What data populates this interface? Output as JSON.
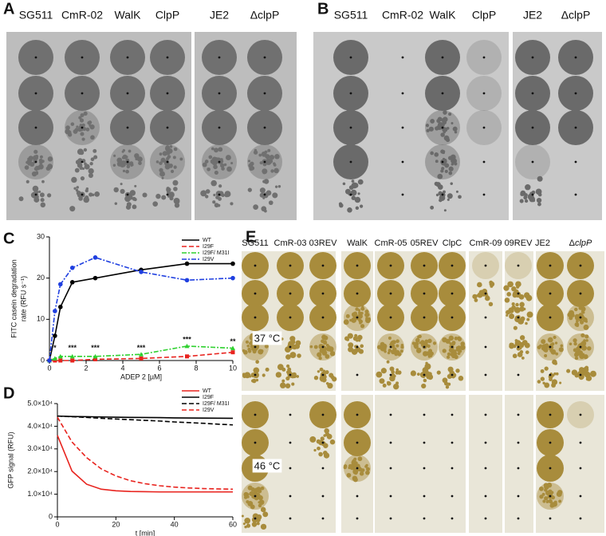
{
  "panel_labels": [
    "A",
    "B",
    "C",
    "D",
    "E"
  ],
  "panel_a": {
    "strains": [
      "SG511",
      "CmR-02",
      "WalK",
      "ClpP",
      "JE2",
      "ΔclpP"
    ]
  },
  "panel_b": {
    "strains": [
      "SG511",
      "CmR-02",
      "WalK",
      "ClpP",
      "JE2",
      "ΔclpP"
    ]
  },
  "panel_e": {
    "strains": [
      "SG511",
      "CmR-03",
      "03REV",
      "WalK",
      "CmR-05",
      "05REV",
      "ClpC",
      "CmR-09",
      "09REV",
      "JE2",
      "Δ",
      "clpP"
    ],
    "temperatures": [
      "37 °C",
      "46 °C"
    ]
  },
  "chart_data": [
    {
      "type": "line",
      "y_label": [
        "FITC casein degradation",
        "rate (RFU s⁻¹)"
      ],
      "x_label": "ADEP 2 [µM]",
      "x": [
        0,
        0.3,
        0.6,
        1.25,
        2.5,
        5,
        7.5,
        10
      ],
      "xlim": [
        0,
        10
      ],
      "xticks": [
        0,
        2,
        4,
        6,
        8,
        10
      ],
      "ylim": [
        0,
        30
      ],
      "yticks": [
        0,
        10,
        20,
        30
      ],
      "series": [
        {
          "name": "WT",
          "color": "#000000",
          "dash": "solid",
          "marker": "circle",
          "values": [
            0,
            6,
            13,
            19,
            20,
            22,
            23.5,
            23.5
          ]
        },
        {
          "name": "I29F",
          "color": "#e8231e",
          "dash": "dashed",
          "marker": "square",
          "values": [
            0,
            0,
            0,
            0,
            0.3,
            0.5,
            1,
            2
          ]
        },
        {
          "name": "I29F/ M31I",
          "color": "#2fd12f",
          "dash": "dashdot",
          "marker": "triangle",
          "values": [
            0,
            0.5,
            1,
            1,
            1,
            1.5,
            3.5,
            3
          ]
        },
        {
          "name": "I29V",
          "color": "#1f3fe0",
          "dash": "dashdot",
          "marker": "circle",
          "values": [
            0,
            12,
            18.5,
            22.5,
            25,
            21.5,
            19.5,
            20
          ]
        }
      ],
      "annotations": [
        {
          "text": "*",
          "x": 0.3,
          "y": 3
        },
        {
          "text": "***",
          "x": 1.25,
          "y": 3
        },
        {
          "text": "***",
          "x": 2.5,
          "y": 3
        },
        {
          "text": "***",
          "x": 5,
          "y": 3
        },
        {
          "text": "***",
          "x": 7.5,
          "y": 5
        },
        {
          "text": "**",
          "x": 10,
          "y": 4.5
        }
      ]
    },
    {
      "type": "line",
      "y_label": [
        "GFP signal (RFU)"
      ],
      "x_label": "t [min]",
      "x": [
        0,
        5,
        10,
        15,
        20,
        25,
        30,
        35,
        40,
        45,
        50,
        55,
        60
      ],
      "xlim": [
        0,
        60
      ],
      "xticks": [
        0,
        20,
        40,
        60
      ],
      "ylim": [
        0,
        50000
      ],
      "yticks": [
        0,
        {
          "value": 10000,
          "label": "1.0×10⁴"
        },
        {
          "value": 20000,
          "label": "2.0×10⁴"
        },
        {
          "value": 30000,
          "label": "3.0×10⁴"
        },
        {
          "value": 40000,
          "label": "4.0×10⁴"
        },
        {
          "value": 50000,
          "label": "5.0×10⁴"
        }
      ],
      "series": [
        {
          "name": "WT",
          "color": "#e8231e",
          "dash": "solid",
          "values": [
            36000,
            20200,
            14400,
            12200,
            11500,
            11200,
            11100,
            11000,
            11000,
            11000,
            11000,
            11000,
            11000
          ]
        },
        {
          "name": "I29F",
          "color": "#000000",
          "dash": "solid",
          "values": [
            44500,
            44300,
            44200,
            44100,
            44000,
            43900,
            43850,
            43800,
            43700,
            43650,
            43600,
            43550,
            43500
          ]
        },
        {
          "name": "I29F/ M31I",
          "color": "#000000",
          "dash": "dashed",
          "values": [
            44500,
            44200,
            43900,
            43500,
            43200,
            42900,
            42600,
            42300,
            41900,
            41600,
            41300,
            40900,
            40600
          ]
        },
        {
          "name": "I29V",
          "color": "#e8231e",
          "dash": "dashed",
          "values": [
            44000,
            33030,
            26140,
            21170,
            18060,
            15960,
            14630,
            13730,
            13140,
            12750,
            12490,
            12330,
            12220
          ]
        }
      ]
    }
  ]
}
